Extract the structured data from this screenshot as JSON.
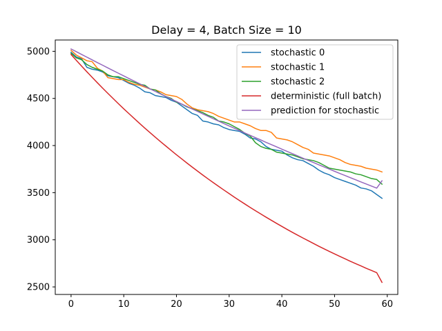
{
  "chart_data": {
    "type": "line",
    "title": "Delay = 4, Batch Size = 10",
    "xlabel": "",
    "ylabel": "",
    "xlim": [
      -3,
      62
    ],
    "ylim": [
      2420,
      5120
    ],
    "xticks": [
      0,
      10,
      20,
      30,
      40,
      50,
      60
    ],
    "yticks": [
      2500,
      3000,
      3500,
      4000,
      4500,
      5000
    ],
    "xtick_labels": [
      "0",
      "10",
      "20",
      "30",
      "40",
      "50",
      "60"
    ],
    "ytick_labels": [
      "2500",
      "3000",
      "3500",
      "4000",
      "4500",
      "5000"
    ],
    "grid": false,
    "legend_position": "top-right",
    "series": [
      {
        "name": "stochastic 0",
        "color": "#1f77b4",
        "x": [
          0,
          1,
          2,
          3,
          4,
          5,
          6,
          7,
          8,
          9,
          10,
          11,
          12,
          13,
          14,
          15,
          16,
          17,
          18,
          19,
          20,
          21,
          22,
          23,
          24,
          25,
          26,
          27,
          28,
          29,
          30,
          31,
          32,
          33,
          34,
          35,
          36,
          37,
          38,
          39,
          40,
          41,
          42,
          43,
          44,
          45,
          46,
          47,
          48,
          49,
          50,
          51,
          52,
          53,
          54,
          55,
          56,
          57,
          58,
          59
        ],
        "values": [
          4990,
          4940,
          4920,
          4830,
          4810,
          4800,
          4780,
          4740,
          4730,
          4720,
          4690,
          4660,
          4640,
          4610,
          4570,
          4560,
          4530,
          4520,
          4510,
          4480,
          4460,
          4420,
          4380,
          4340,
          4320,
          4260,
          4250,
          4230,
          4220,
          4190,
          4170,
          4160,
          4150,
          4120,
          4080,
          4070,
          4040,
          3990,
          3960,
          3950,
          3940,
          3900,
          3870,
          3850,
          3840,
          3810,
          3780,
          3740,
          3710,
          3690,
          3660,
          3640,
          3620,
          3600,
          3580,
          3550,
          3540,
          3520,
          3480,
          3440
        ]
      },
      {
        "name": "stochastic 1",
        "color": "#ff7f0e",
        "x": [
          0,
          1,
          2,
          3,
          4,
          5,
          6,
          7,
          8,
          9,
          10,
          11,
          12,
          13,
          14,
          15,
          16,
          17,
          18,
          19,
          20,
          21,
          22,
          23,
          24,
          25,
          26,
          27,
          28,
          29,
          30,
          31,
          32,
          33,
          34,
          35,
          36,
          37,
          38,
          39,
          40,
          41,
          42,
          43,
          44,
          45,
          46,
          47,
          48,
          49,
          50,
          51,
          52,
          53,
          54,
          55,
          56,
          57,
          58,
          59
        ],
        "values": [
          5010,
          4960,
          4930,
          4900,
          4890,
          4820,
          4790,
          4720,
          4710,
          4700,
          4700,
          4670,
          4650,
          4640,
          4620,
          4600,
          4590,
          4570,
          4540,
          4530,
          4520,
          4490,
          4440,
          4400,
          4380,
          4370,
          4360,
          4340,
          4310,
          4290,
          4270,
          4250,
          4250,
          4230,
          4210,
          4180,
          4160,
          4160,
          4140,
          4080,
          4070,
          4060,
          4040,
          4010,
          3980,
          3960,
          3920,
          3910,
          3900,
          3890,
          3870,
          3850,
          3820,
          3800,
          3790,
          3780,
          3760,
          3750,
          3740,
          3720
        ]
      },
      {
        "name": "stochastic 2",
        "color": "#2ca02c",
        "x": [
          0,
          1,
          2,
          3,
          4,
          5,
          6,
          7,
          8,
          9,
          10,
          11,
          12,
          13,
          14,
          15,
          16,
          17,
          18,
          19,
          20,
          21,
          22,
          23,
          24,
          25,
          26,
          27,
          28,
          29,
          30,
          31,
          32,
          33,
          34,
          35,
          36,
          37,
          38,
          39,
          40,
          41,
          42,
          43,
          44,
          45,
          46,
          47,
          48,
          49,
          50,
          51,
          52,
          53,
          54,
          55,
          56,
          57,
          58,
          59
        ],
        "values": [
          4980,
          4930,
          4910,
          4860,
          4830,
          4810,
          4790,
          4750,
          4730,
          4730,
          4710,
          4690,
          4670,
          4650,
          4640,
          4600,
          4590,
          4550,
          4520,
          4500,
          4460,
          4440,
          4410,
          4390,
          4370,
          4350,
          4320,
          4300,
          4260,
          4250,
          4230,
          4200,
          4170,
          4130,
          4100,
          4030,
          3990,
          3970,
          3960,
          3930,
          3920,
          3910,
          3900,
          3880,
          3860,
          3850,
          3840,
          3820,
          3790,
          3760,
          3750,
          3740,
          3730,
          3720,
          3700,
          3690,
          3670,
          3650,
          3640,
          3590
        ]
      },
      {
        "name": "deterministic (full batch)",
        "color": "#d62728",
        "x": [
          0,
          1,
          2,
          3,
          4,
          5,
          6,
          7,
          8,
          9,
          10,
          11,
          12,
          13,
          14,
          15,
          16,
          17,
          18,
          19,
          20,
          21,
          22,
          23,
          24,
          25,
          26,
          27,
          28,
          29,
          30,
          31,
          32,
          33,
          34,
          35,
          36,
          37,
          38,
          39,
          40,
          41,
          42,
          43,
          44,
          45,
          46,
          47,
          48,
          49,
          50,
          51,
          52,
          53,
          54,
          55,
          56,
          57,
          58,
          59
        ],
        "values": [
          4966,
          4904,
          4843,
          4783,
          4724,
          4666,
          4609,
          4553,
          4498,
          4443,
          4390,
          4338,
          4286,
          4235,
          4185,
          4136,
          4088,
          4040,
          3994,
          3948,
          3902,
          3858,
          3814,
          3771,
          3729,
          3687,
          3646,
          3606,
          3567,
          3528,
          3490,
          3452,
          3415,
          3379,
          3343,
          3308,
          3274,
          3240,
          3207,
          3174,
          3142,
          3110,
          3079,
          3049,
          3019,
          2990,
          2961,
          2932,
          2904,
          2877,
          2850,
          2824,
          2798,
          2772,
          2747,
          2723,
          2698,
          2675,
          2651,
          2548
        ]
      },
      {
        "name": "prediction for stochastic",
        "color": "#9467bd",
        "x": [
          0,
          1,
          2,
          3,
          4,
          5,
          6,
          7,
          8,
          9,
          10,
          11,
          12,
          13,
          14,
          15,
          16,
          17,
          18,
          19,
          20,
          21,
          22,
          23,
          24,
          25,
          26,
          27,
          28,
          29,
          30,
          31,
          32,
          33,
          34,
          35,
          36,
          37,
          38,
          39,
          40,
          41,
          42,
          43,
          44,
          45,
          46,
          47,
          48,
          49,
          50,
          51,
          52,
          53,
          54,
          55,
          56,
          57,
          58,
          59
        ],
        "values": [
          5025,
          4996,
          4967,
          4938,
          4909,
          4880,
          4852,
          4823,
          4795,
          4767,
          4739,
          4711,
          4683,
          4656,
          4628,
          4601,
          4574,
          4547,
          4520,
          4493,
          4467,
          4440,
          4414,
          4388,
          4362,
          4336,
          4310,
          4284,
          4259,
          4233,
          4208,
          4183,
          4158,
          4133,
          4108,
          4083,
          4059,
          4034,
          4010,
          3986,
          3962,
          3938,
          3914,
          3890,
          3866,
          3843,
          3820,
          3796,
          3773,
          3750,
          3727,
          3704,
          3682,
          3659,
          3637,
          3614,
          3592,
          3570,
          3548,
          3626
        ]
      }
    ]
  }
}
